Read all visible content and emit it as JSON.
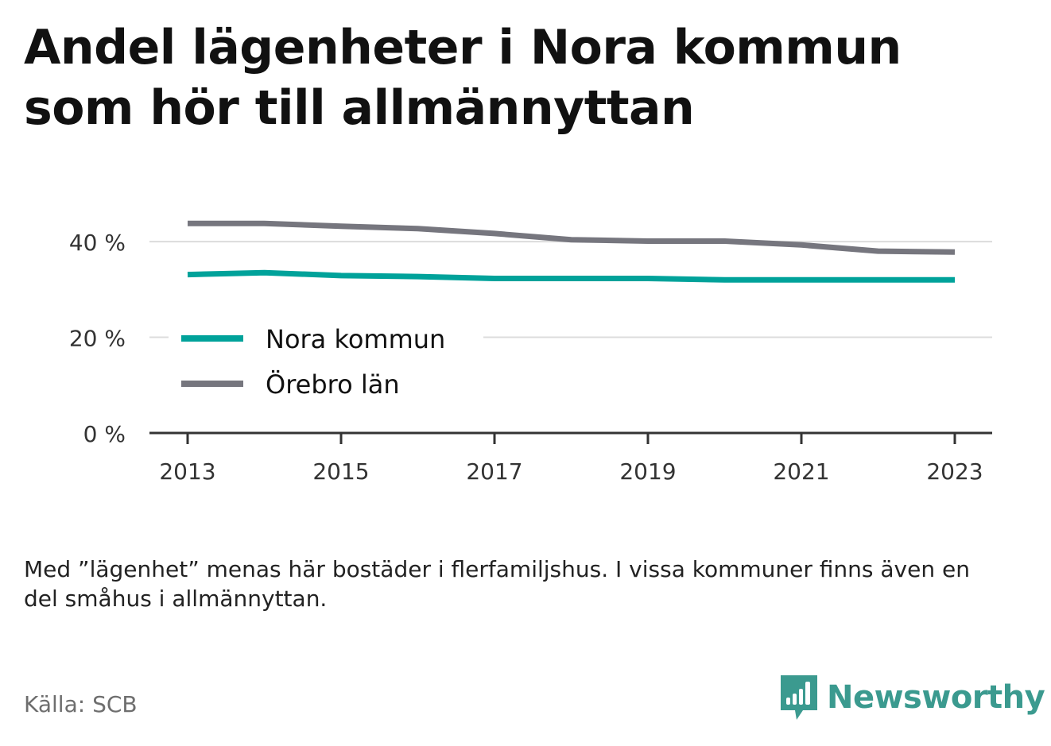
{
  "title": "Andel lägenheter i Nora kommun som hör till allmännyttan",
  "note": "Med ”lägenhet” menas här bostäder i flerfamiljshus. I vissa kommuner finns även en del småhus i allmännyttan.",
  "source": "Källa: SCB",
  "brand": {
    "name": "Newsworthy",
    "color": "#3b9a8f",
    "icon": "bar-chart-speech-bubble-icon"
  },
  "chart_data": {
    "type": "line",
    "x": [
      2013,
      2014,
      2015,
      2016,
      2017,
      2018,
      2019,
      2020,
      2021,
      2022,
      2023
    ],
    "x_ticks": [
      "2013",
      "2015",
      "2017",
      "2019",
      "2021",
      "2023"
    ],
    "y_ticks": [
      "0 %",
      "20 %",
      "40 %"
    ],
    "ylim": [
      0,
      44
    ],
    "grid": true,
    "legend_position": "left",
    "series": [
      {
        "name": "Nora kommun",
        "color": "#00a29a",
        "values": [
          33.1,
          33.5,
          32.9,
          32.7,
          32.3,
          32.3,
          32.3,
          32.0,
          32.0,
          32.0,
          32.0
        ]
      },
      {
        "name": "Örebro län",
        "color": "#76767e",
        "values": [
          43.8,
          43.8,
          43.2,
          42.7,
          41.7,
          40.4,
          40.1,
          40.1,
          39.3,
          38.0,
          37.8
        ]
      }
    ]
  }
}
